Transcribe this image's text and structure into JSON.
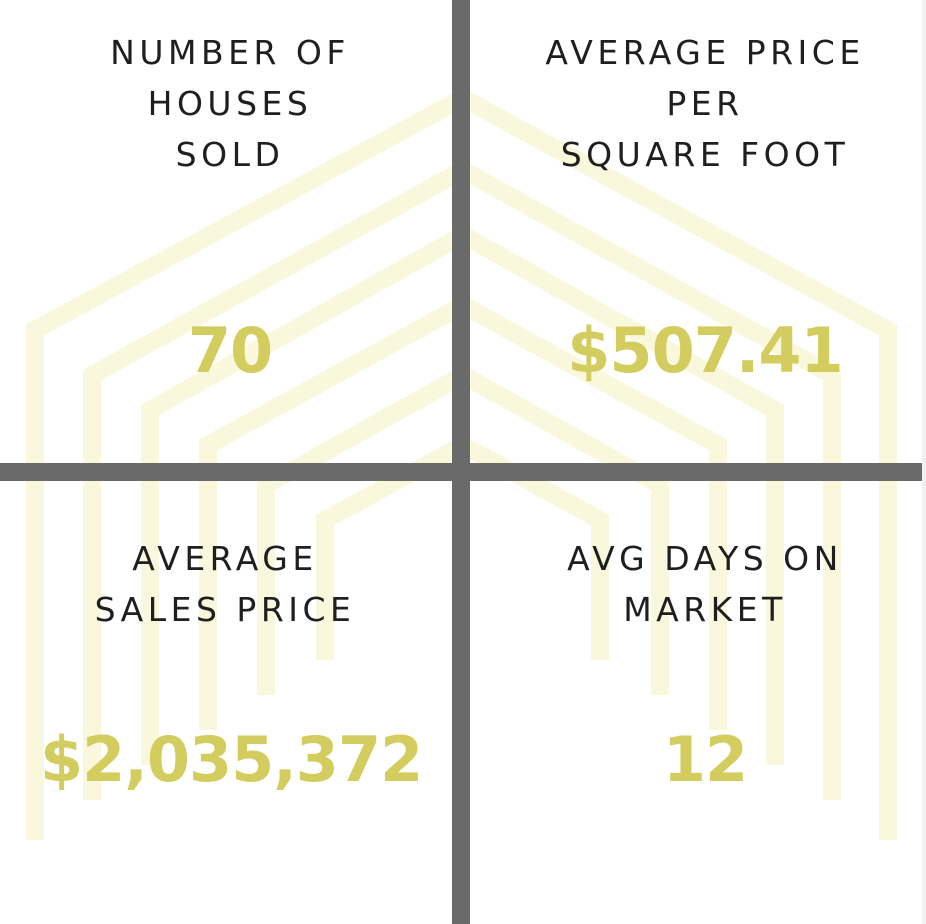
{
  "colors": {
    "accent": "#d3cd5f",
    "divider": "#6a6a6a",
    "text": "#1f1f1f",
    "background_art": "#faf8dc"
  },
  "background": {
    "icon": "house-outline-chevrons"
  },
  "stats": {
    "houses_sold": {
      "label": "NUMBER OF\nHOUSES\nSOLD",
      "value": "70"
    },
    "price_per_sqft": {
      "label": "AVERAGE PRICE\nPER\nSQUARE FOOT",
      "value": "$507.41"
    },
    "avg_sales_price": {
      "label": "AVERAGE\nSALES PRICE",
      "value": "$2,035,372"
    },
    "avg_days_on_market": {
      "label": "AVG DAYS ON\nMARKET",
      "value": "12"
    }
  }
}
